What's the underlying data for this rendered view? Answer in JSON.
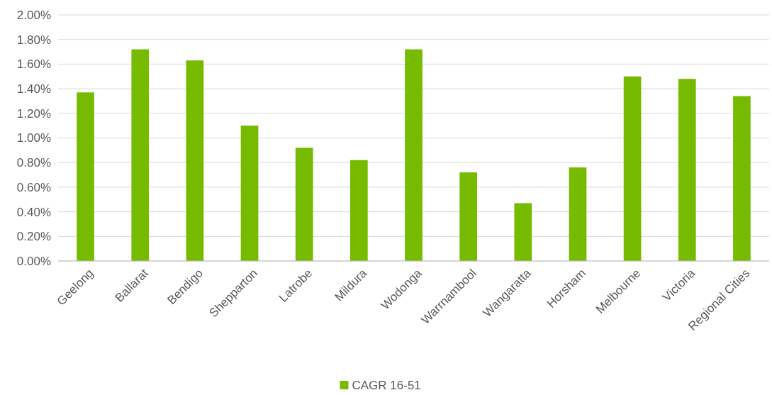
{
  "chart_data": {
    "type": "bar",
    "categories": [
      "Geelong",
      "Ballarat",
      "Bendigo",
      "Shepparton",
      "Latrobe",
      "Mildura",
      "Wodonga",
      "Warrnambool",
      "Wangaratta",
      "Horsham",
      "Melbourne",
      "Victoria",
      "Regional Cities"
    ],
    "series": [
      {
        "name": "CAGR 16-51",
        "color": "#77bb00",
        "values": [
          1.37,
          1.72,
          1.63,
          1.1,
          0.92,
          0.82,
          1.72,
          0.72,
          0.47,
          0.76,
          1.5,
          1.48,
          1.34
        ]
      }
    ],
    "ylim": [
      0,
      2
    ],
    "yticks": [
      {
        "value": 0,
        "label": "0.00%"
      },
      {
        "value": 0.2,
        "label": "0.20%"
      },
      {
        "value": 0.4,
        "label": "0.40%"
      },
      {
        "value": 0.6,
        "label": "0.60%"
      },
      {
        "value": 0.8,
        "label": "0.80%"
      },
      {
        "value": 1,
        "label": "1.00%"
      },
      {
        "value": 1.2,
        "label": "1.20%"
      },
      {
        "value": 1.4,
        "label": "1.40%"
      },
      {
        "value": 1.6,
        "label": "1.60%"
      },
      {
        "value": 1.8,
        "label": "1.80%"
      },
      {
        "value": 2,
        "label": "2.00%"
      }
    ],
    "grid": "y",
    "legend": "bottom"
  }
}
